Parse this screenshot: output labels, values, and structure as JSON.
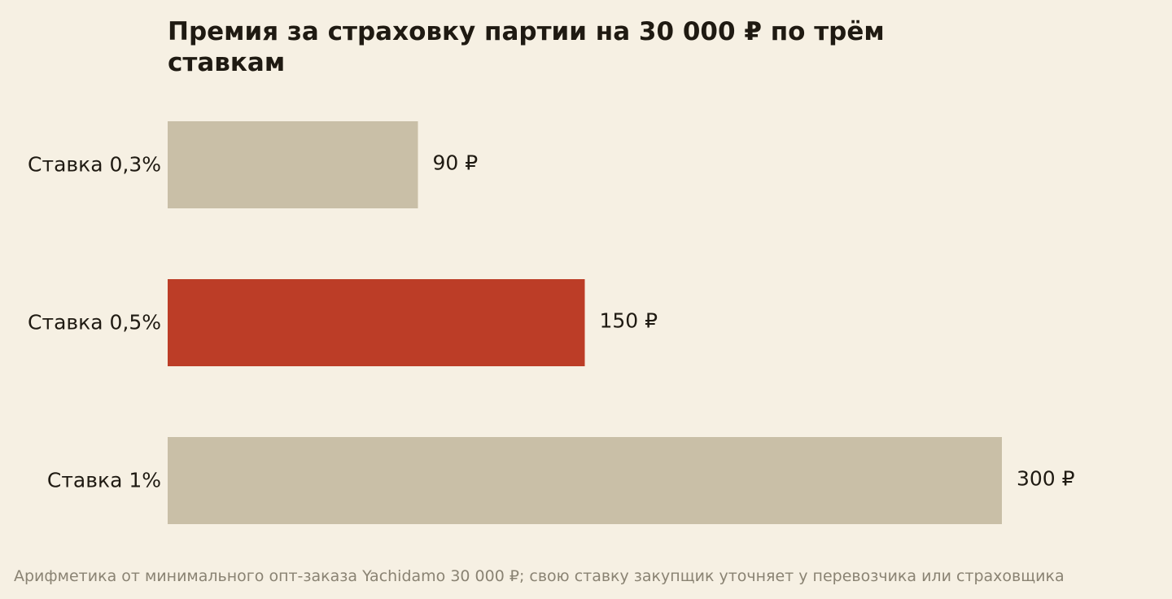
{
  "chart_data": {
    "type": "bar",
    "orientation": "horizontal",
    "title": "Премия за страховку партии на 30 000 ₽ по трём ставкам",
    "categories": [
      "Ставка 0,3%",
      "Ставка 0,5%",
      "Ставка 1%"
    ],
    "values": [
      90,
      150,
      300
    ],
    "value_labels": [
      "90 ₽",
      "150 ₽",
      "300 ₽"
    ],
    "highlight_index": 1,
    "xlim": [
      0,
      300
    ],
    "grid": false,
    "legend": "none",
    "footnote": "Арифметика от минимального опт-заказа Yachidamo 30 000 ₽; свою ставку закупщик уточняет у перевозчика или страховщика"
  },
  "colors": {
    "background": "#f6f0e3",
    "bar": "#c9bfa7",
    "bar_highlight": "#bc3d27",
    "text": "#1f1a12",
    "footnote": "#8a8373"
  }
}
